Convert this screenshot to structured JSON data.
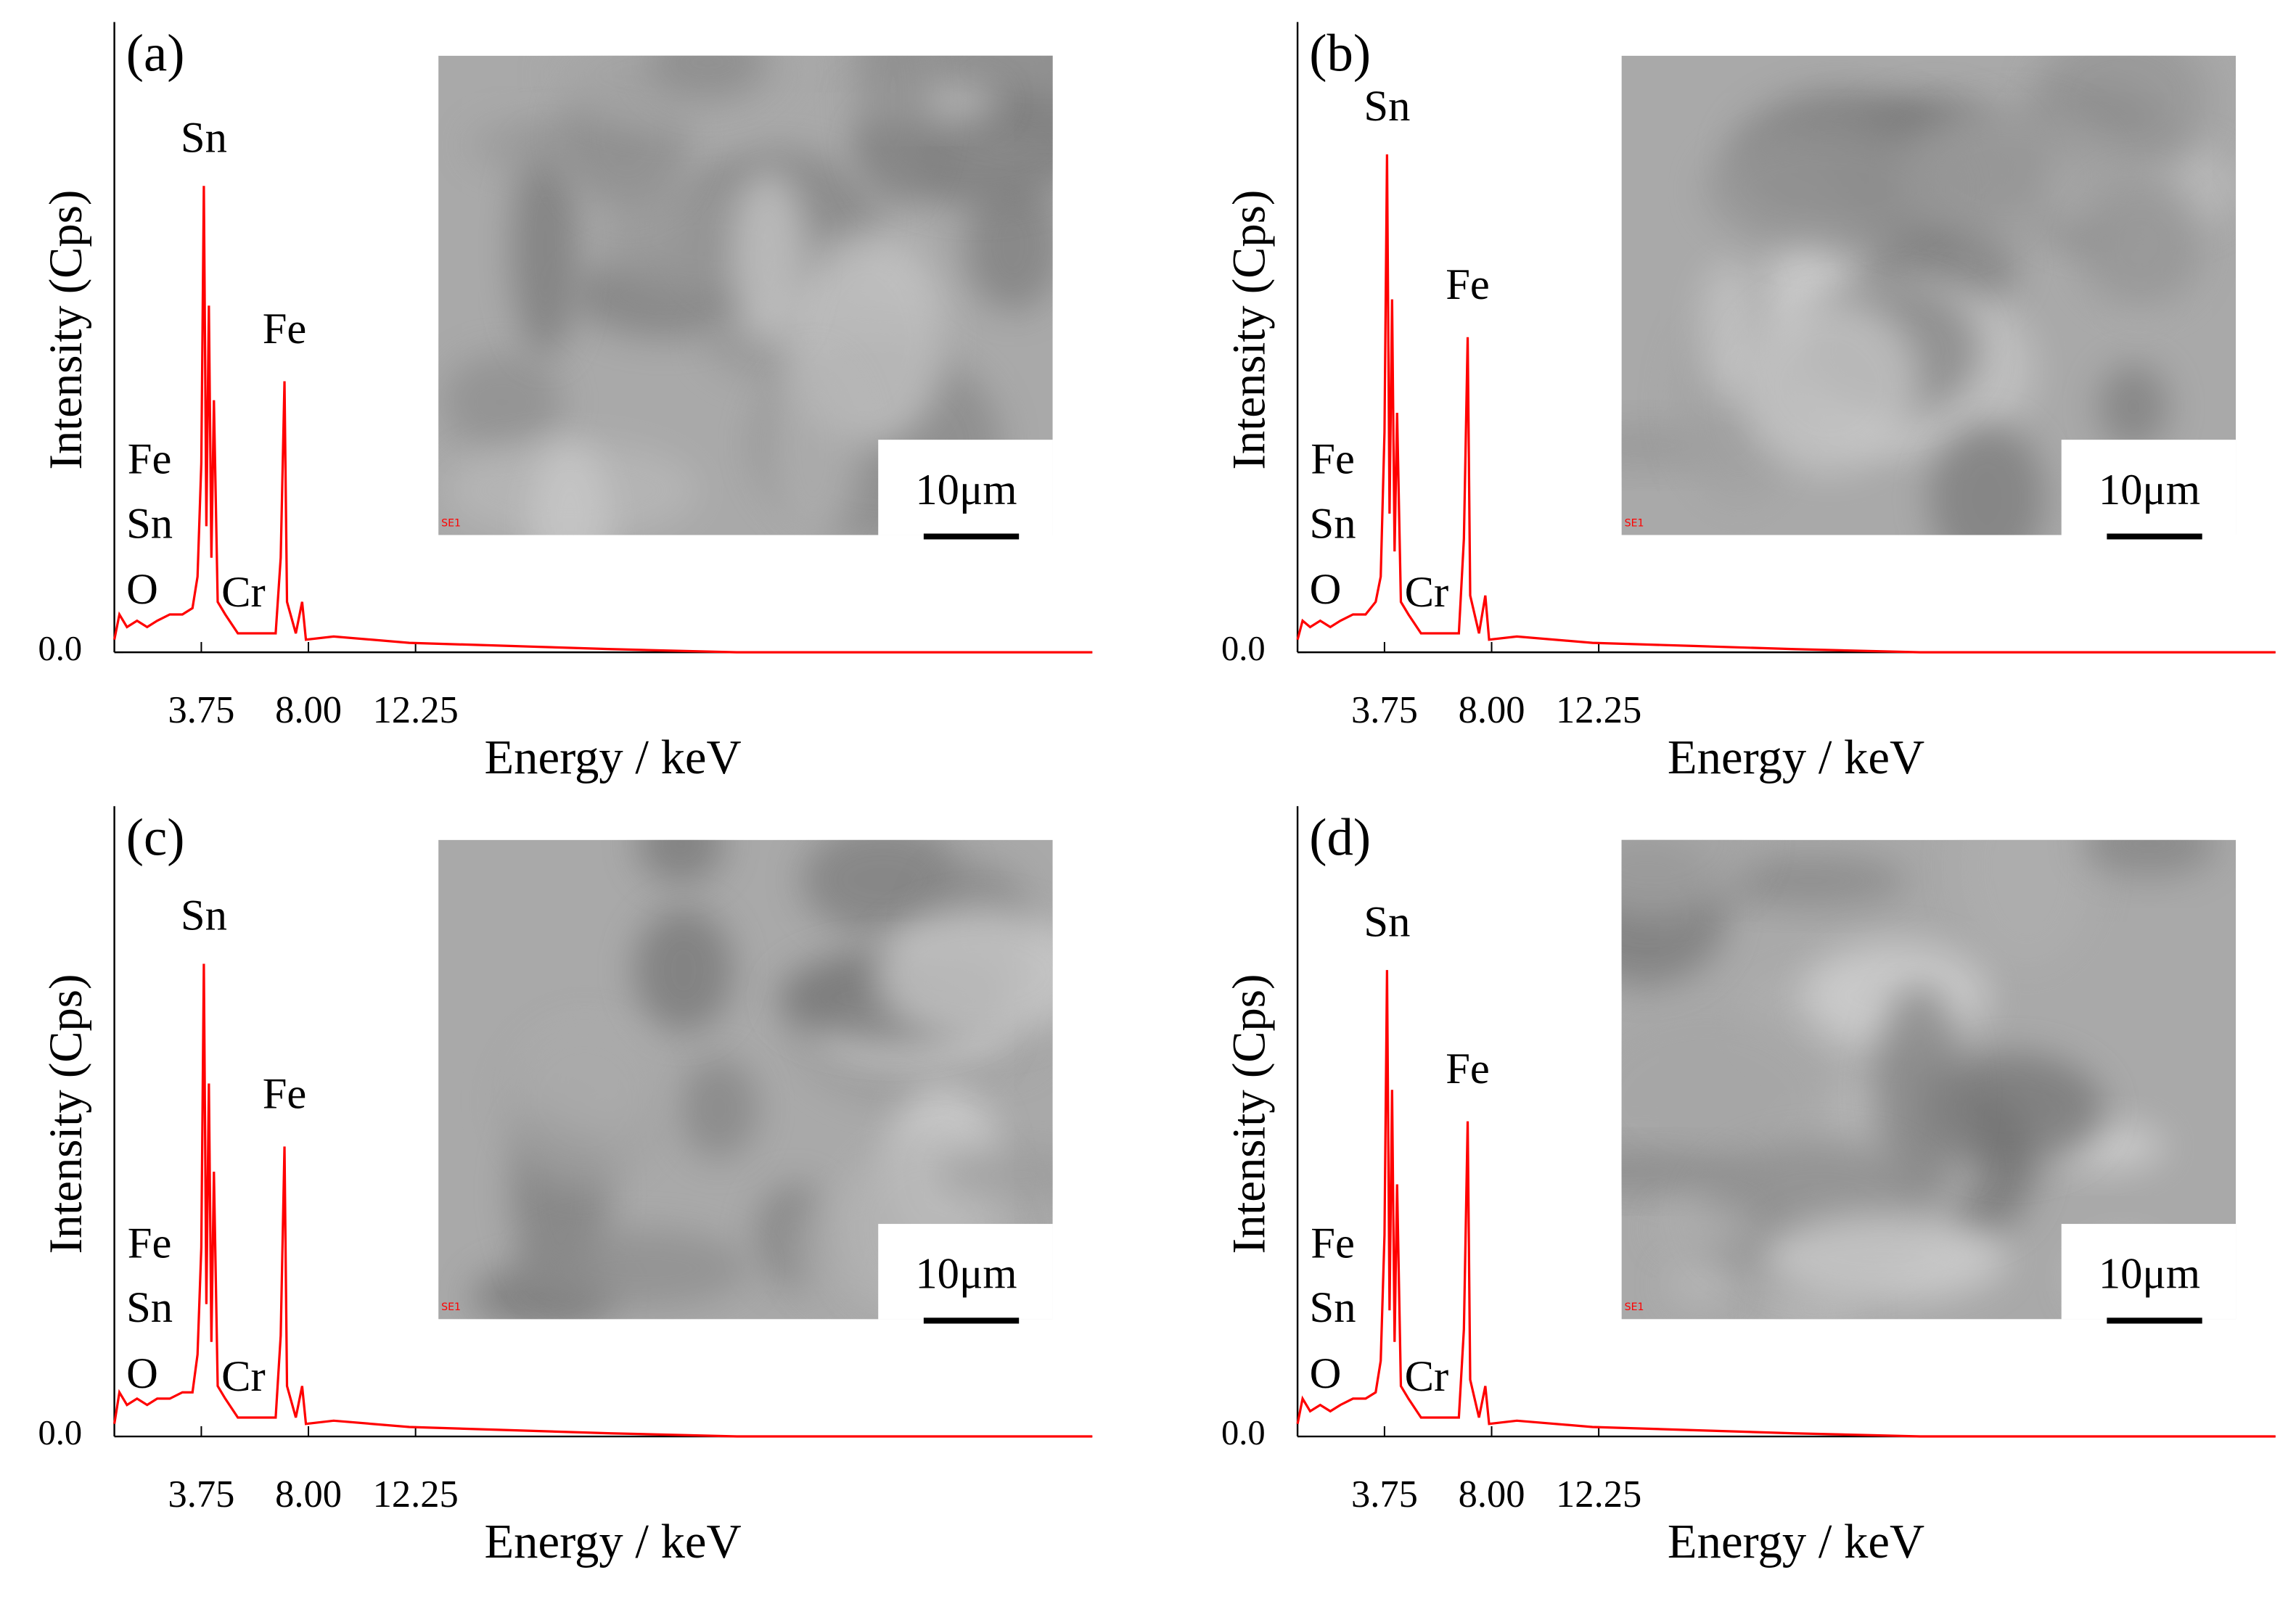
{
  "chart_data": [
    {
      "type": "line",
      "panel_label": "(a)",
      "xlabel": "Energy / keV",
      "ylabel": "Intensity (Cps)",
      "color": "#ff0000",
      "xlim": [
        0.3,
        39.1
      ],
      "xticks": [
        3.75,
        {
          "value": 8,
          "label": "8.00"
        },
        12.25
      ],
      "ylim": [
        0,
        100
      ],
      "yticks": [
        {
          "value": 0,
          "label": "0.0"
        }
      ],
      "x": [
        0.3,
        0.5,
        0.8,
        1.2,
        1.6,
        2.0,
        2.5,
        3.0,
        3.4,
        3.6,
        3.75,
        3.85,
        3.95,
        4.05,
        4.15,
        4.25,
        4.4,
        4.7,
        5.2,
        6.0,
        6.7,
        6.9,
        7.05,
        7.15,
        7.5,
        7.75,
        7.9,
        9,
        12,
        16,
        20,
        25,
        39.1
      ],
      "values": [
        2,
        6,
        4,
        5,
        4,
        5,
        6,
        6,
        7,
        12,
        30,
        74,
        20,
        55,
        15,
        40,
        8,
        6,
        3,
        3,
        3,
        15,
        43,
        8,
        3,
        8,
        2,
        2.5,
        1.5,
        1,
        0.5,
        0,
        0
      ],
      "annotations": [
        "Sn",
        "Fe",
        "Fe",
        "Sn",
        "O",
        "Cr"
      ],
      "scale_bar": "10μm",
      "inset_label": "SE1"
    },
    {
      "type": "line",
      "panel_label": "(b)",
      "xlabel": "Energy / keV",
      "ylabel": "Intensity (Cps)",
      "color": "#ff0000",
      "xlim": [
        0.3,
        39.1
      ],
      "xticks": [
        3.75,
        {
          "value": 8,
          "label": "8.00"
        },
        12.25
      ],
      "ylim": [
        0,
        100
      ],
      "yticks": [
        {
          "value": 0,
          "label": "0.0"
        }
      ],
      "x": [
        0.3,
        0.5,
        0.8,
        1.2,
        1.6,
        2.0,
        2.5,
        3.0,
        3.4,
        3.6,
        3.75,
        3.85,
        3.95,
        4.05,
        4.15,
        4.25,
        4.4,
        4.7,
        5.2,
        6.0,
        6.7,
        6.9,
        7.05,
        7.15,
        7.5,
        7.75,
        7.9,
        9,
        12,
        16,
        20,
        25,
        39.1
      ],
      "values": [
        2,
        5,
        4,
        5,
        4,
        5,
        6,
        6,
        8,
        12,
        35,
        79,
        22,
        56,
        16,
        38,
        8,
        6,
        3,
        3,
        3,
        18,
        50,
        9,
        3,
        9,
        2,
        2.5,
        1.5,
        1,
        0.5,
        0,
        0
      ],
      "annotations": [
        "Sn",
        "Fe",
        "Fe",
        "Sn",
        "O",
        "Cr"
      ],
      "scale_bar": "10μm",
      "inset_label": "SE1"
    },
    {
      "type": "line",
      "panel_label": "(c)",
      "xlabel": "Energy / keV",
      "ylabel": "Intensity (Cps)",
      "color": "#ff0000",
      "xlim": [
        0.3,
        39.1
      ],
      "xticks": [
        3.75,
        {
          "value": 8,
          "label": "8.00"
        },
        12.25
      ],
      "ylim": [
        0,
        100
      ],
      "yticks": [
        {
          "value": 0,
          "label": "0.0"
        }
      ],
      "x": [
        0.3,
        0.5,
        0.8,
        1.2,
        1.6,
        2.0,
        2.5,
        3.0,
        3.4,
        3.6,
        3.75,
        3.85,
        3.95,
        4.05,
        4.15,
        4.25,
        4.4,
        4.7,
        5.2,
        6.0,
        6.7,
        6.9,
        7.05,
        7.15,
        7.5,
        7.75,
        7.9,
        9,
        12,
        16,
        20,
        25,
        39.1
      ],
      "values": [
        2,
        7,
        5,
        6,
        5,
        6,
        6,
        7,
        7,
        13,
        30,
        75,
        21,
        56,
        15,
        42,
        8,
        6,
        3,
        3,
        3,
        16,
        46,
        8,
        3,
        8,
        2,
        2.5,
        1.5,
        1,
        0.5,
        0,
        0
      ],
      "annotations": [
        "Sn",
        "Fe",
        "Fe",
        "Sn",
        "O",
        "Cr"
      ],
      "scale_bar": "10μm",
      "inset_label": "SE1"
    },
    {
      "type": "line",
      "panel_label": "(d)",
      "xlabel": "Energy / keV",
      "ylabel": "Intensity (Cps)",
      "color": "#ff0000",
      "xlim": [
        0.3,
        39.1
      ],
      "xticks": [
        3.75,
        {
          "value": 8,
          "label": "8.00"
        },
        12.25
      ],
      "ylim": [
        0,
        100
      ],
      "yticks": [
        {
          "value": 0,
          "label": "0.0"
        }
      ],
      "x": [
        0.3,
        0.5,
        0.8,
        1.2,
        1.6,
        2.0,
        2.5,
        3.0,
        3.4,
        3.6,
        3.75,
        3.85,
        3.95,
        4.05,
        4.15,
        4.25,
        4.4,
        4.7,
        5.2,
        6.0,
        6.7,
        6.9,
        7.05,
        7.15,
        7.5,
        7.75,
        7.9,
        9,
        12,
        16,
        20,
        25,
        39.1
      ],
      "values": [
        2,
        6,
        4,
        5,
        4,
        5,
        6,
        6,
        7,
        12,
        32,
        74,
        20,
        55,
        15,
        40,
        8,
        6,
        3,
        3,
        3,
        17,
        50,
        9,
        3,
        8,
        2,
        2.5,
        1.5,
        1,
        0.5,
        0,
        0
      ],
      "annotations": [
        "Sn",
        "Fe",
        "Fe",
        "Sn",
        "O",
        "Cr"
      ],
      "scale_bar": "10μm",
      "inset_label": "SE1"
    }
  ]
}
